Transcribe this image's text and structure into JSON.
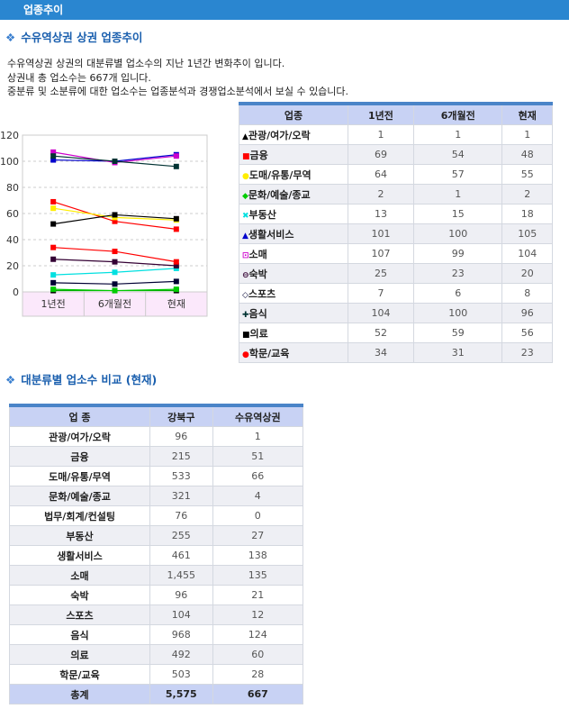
{
  "header": {
    "title": "업종추이"
  },
  "section1": {
    "title": "수유역상권 상권 업종추이",
    "desc": [
      "수유역상권 상권의 대분류별 업소수의 지난 1년간 변화추이 입니다.",
      "상권내 총 업소수는 667개 입니다.",
      "중분류 및 소분류에 대한 업소수는 업종분석과 경쟁업소분석에서 보실 수 있습니다."
    ]
  },
  "trend_table": {
    "headers": [
      "업종",
      "1년전",
      "6개월전",
      "현재"
    ],
    "rows": [
      {
        "marker": "▲",
        "color": "#000000",
        "name": "관광/여가/오락",
        "v": [
          "1",
          "1",
          "1"
        ]
      },
      {
        "marker": "■",
        "color": "#ff0000",
        "name": "금융",
        "v": [
          "69",
          "54",
          "48"
        ]
      },
      {
        "marker": "●",
        "color": "#ffee00",
        "name": "도매/유통/무역",
        "v": [
          "64",
          "57",
          "55"
        ]
      },
      {
        "marker": "◆",
        "color": "#00cc00",
        "name": "문화/예술/종교",
        "v": [
          "2",
          "1",
          "2"
        ]
      },
      {
        "marker": "✖",
        "color": "#00e0e0",
        "name": "부동산",
        "v": [
          "13",
          "15",
          "18"
        ]
      },
      {
        "marker": "▲",
        "color": "#0000cc",
        "name": "생활서비스",
        "v": [
          "101",
          "100",
          "105"
        ]
      },
      {
        "marker": "⊡",
        "color": "#cc00cc",
        "name": "소매",
        "v": [
          "107",
          "99",
          "104"
        ]
      },
      {
        "marker": "⊖",
        "color": "#330033",
        "name": "숙박",
        "v": [
          "25",
          "23",
          "20"
        ]
      },
      {
        "marker": "◇",
        "color": "#000033",
        "name": "스포츠",
        "v": [
          "7",
          "6",
          "8"
        ]
      },
      {
        "marker": "✚",
        "color": "#003333",
        "name": "음식",
        "v": [
          "104",
          "100",
          "96"
        ]
      },
      {
        "marker": "■",
        "color": "#000000",
        "name": "의료",
        "v": [
          "52",
          "59",
          "56"
        ]
      },
      {
        "marker": "●",
        "color": "#ff0000",
        "name": "학문/교육",
        "v": [
          "34",
          "31",
          "23"
        ]
      }
    ]
  },
  "chart_data": {
    "type": "line",
    "categories": [
      "1년전",
      "6개월전",
      "현재"
    ],
    "ylim": [
      0,
      120
    ],
    "yticks": [
      "0",
      "20",
      "40",
      "60",
      "80",
      "100",
      "120"
    ],
    "grid": true,
    "series": [
      {
        "name": "관광/여가/오락",
        "color": "#000000",
        "line": "#00aa00",
        "values": [
          1,
          1,
          1
        ]
      },
      {
        "name": "금융",
        "color": "#ff0000",
        "values": [
          69,
          54,
          48
        ]
      },
      {
        "name": "도매/유통/무역",
        "color": "#ffee00",
        "values": [
          64,
          57,
          55
        ]
      },
      {
        "name": "문화/예술/종교",
        "color": "#00cc00",
        "values": [
          2,
          1,
          2
        ]
      },
      {
        "name": "부동산",
        "color": "#00e0e0",
        "values": [
          13,
          15,
          18
        ]
      },
      {
        "name": "생활서비스",
        "color": "#0000cc",
        "values": [
          101,
          100,
          105
        ]
      },
      {
        "name": "소매",
        "color": "#cc00cc",
        "values": [
          107,
          99,
          104
        ]
      },
      {
        "name": "숙박",
        "color": "#330033",
        "values": [
          25,
          23,
          20
        ]
      },
      {
        "name": "스포츠",
        "color": "#000033",
        "values": [
          7,
          6,
          8
        ]
      },
      {
        "name": "음식",
        "color": "#003333",
        "values": [
          104,
          100,
          96
        ]
      },
      {
        "name": "의료",
        "color": "#000000",
        "values": [
          52,
          59,
          56
        ]
      },
      {
        "name": "학문/교육",
        "color": "#ff0000",
        "values": [
          34,
          31,
          23
        ]
      }
    ]
  },
  "section2": {
    "title": "대분류별 업소수 비교 (현재)"
  },
  "compare_table": {
    "headers": [
      "업 종",
      "강북구",
      "수유역상권"
    ],
    "rows": [
      [
        "관광/여가/오락",
        "96",
        "1"
      ],
      [
        "금융",
        "215",
        "51"
      ],
      [
        "도매/유통/무역",
        "533",
        "66"
      ],
      [
        "문화/예술/종교",
        "321",
        "4"
      ],
      [
        "법무/회계/컨설팅",
        "76",
        "0"
      ],
      [
        "부동산",
        "255",
        "27"
      ],
      [
        "생활서비스",
        "461",
        "138"
      ],
      [
        "소매",
        "1,455",
        "135"
      ],
      [
        "숙박",
        "96",
        "21"
      ],
      [
        "스포츠",
        "104",
        "12"
      ],
      [
        "음식",
        "968",
        "124"
      ],
      [
        "의료",
        "492",
        "60"
      ],
      [
        "학문/교육",
        "503",
        "28"
      ]
    ],
    "total": [
      "총계",
      "5,575",
      "667"
    ]
  }
}
